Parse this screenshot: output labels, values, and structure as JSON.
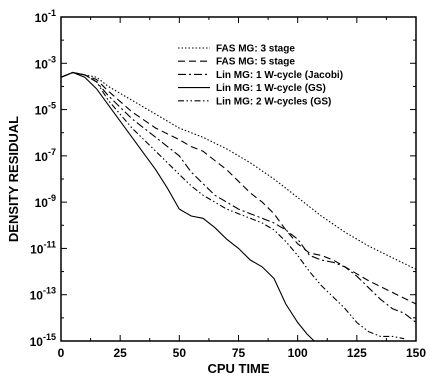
{
  "chart_data": {
    "type": "line",
    "title": "",
    "xlabel": "CPU TIME",
    "ylabel": "DENSITY RESIDUAL",
    "xlim": [
      0,
      150
    ],
    "ylim_exp": [
      -15,
      -1
    ],
    "yscale": "log",
    "grid": false,
    "legend_placement": "top-right",
    "x_ticks": [
      0,
      25,
      50,
      75,
      100,
      125,
      150
    ],
    "x_tick_labels": [
      "0",
      "25",
      "50",
      "75",
      "100",
      "125",
      "150"
    ],
    "y_ticks_exp": [
      -1,
      -3,
      -5,
      -7,
      -9,
      -11,
      -13,
      -15
    ],
    "y_tick_labels": [
      {
        "base": "10",
        "exp": "-1"
      },
      {
        "base": "10",
        "exp": "-3"
      },
      {
        "base": "10",
        "exp": "-5"
      },
      {
        "base": "10",
        "exp": "-7"
      },
      {
        "base": "10",
        "exp": "-9"
      },
      {
        "base": "10",
        "exp": "-11"
      },
      {
        "base": "10",
        "exp": "-13"
      },
      {
        "base": "10",
        "exp": "-15"
      }
    ],
    "series": [
      {
        "name": "FAS MG: 3 stage",
        "dash": "1.5,2",
        "x": [
          0,
          5,
          10,
          15,
          20,
          30,
          40,
          50,
          60,
          70,
          80,
          90,
          100,
          110,
          120,
          130,
          140,
          150
        ],
        "y_exp": [
          -3.6,
          -3.4,
          -3.5,
          -3.6,
          -4.0,
          -4.6,
          -5.2,
          -5.8,
          -6.2,
          -6.7,
          -7.3,
          -8.0,
          -8.8,
          -9.6,
          -10.3,
          -10.9,
          -11.4,
          -11.9
        ]
      },
      {
        "name": "FAS MG: 5 stage",
        "dash": "7,4",
        "x": [
          0,
          5,
          10,
          15,
          20,
          30,
          40,
          50,
          55,
          60,
          65,
          70,
          75,
          80,
          85,
          90,
          95,
          100,
          105,
          110,
          115,
          120,
          130,
          140,
          150
        ],
        "y_exp": [
          -3.6,
          -3.4,
          -3.5,
          -3.7,
          -4.2,
          -5.1,
          -5.8,
          -6.3,
          -6.6,
          -6.8,
          -7.2,
          -7.6,
          -8.1,
          -8.6,
          -9.0,
          -9.5,
          -10.2,
          -10.8,
          -11.2,
          -11.3,
          -11.5,
          -11.8,
          -12.4,
          -12.9,
          -13.4
        ]
      },
      {
        "name": "Lin MG: 1 W-cycle (Jacobi)",
        "dash": "8,3,2,3",
        "x": [
          0,
          5,
          10,
          15,
          20,
          30,
          40,
          50,
          55,
          60,
          65,
          70,
          75,
          80,
          85,
          90,
          95,
          100,
          105,
          110,
          115,
          120,
          125,
          130,
          135,
          140,
          145,
          150
        ],
        "y_exp": [
          -3.6,
          -3.4,
          -3.5,
          -3.8,
          -4.4,
          -5.4,
          -6.2,
          -7.0,
          -7.7,
          -8.2,
          -8.7,
          -9.0,
          -9.3,
          -9.5,
          -9.7,
          -9.9,
          -10.2,
          -10.6,
          -11.3,
          -11.5,
          -11.6,
          -11.8,
          -12.2,
          -12.7,
          -13.2,
          -13.6,
          -13.8,
          -14.2
        ]
      },
      {
        "name": "Lin MG: 1 W-cycle (GS)",
        "dash": "",
        "x": [
          0,
          5,
          10,
          15,
          20,
          30,
          40,
          45,
          50,
          55,
          60,
          65,
          70,
          75,
          80,
          85,
          90,
          95,
          100,
          104,
          107
        ],
        "y_exp": [
          -3.6,
          -3.4,
          -3.6,
          -4.1,
          -4.8,
          -6.2,
          -7.6,
          -8.4,
          -9.3,
          -9.6,
          -9.7,
          -10.1,
          -10.6,
          -11.0,
          -11.5,
          -11.8,
          -12.3,
          -13.4,
          -14.2,
          -14.7,
          -15.0
        ]
      },
      {
        "name": "Lin MG: 2 W-cycles (GS)",
        "dash": "6,2.5,1.5,2.5,1.5,2.5",
        "x": [
          0,
          5,
          10,
          15,
          20,
          30,
          40,
          50,
          55,
          60,
          65,
          70,
          75,
          80,
          85,
          90,
          95,
          100,
          105,
          110,
          115,
          120,
          125,
          130,
          135,
          140,
          145
        ],
        "y_exp": [
          -3.6,
          -3.4,
          -3.5,
          -3.8,
          -4.6,
          -5.8,
          -6.8,
          -7.8,
          -8.3,
          -8.7,
          -9.0,
          -9.3,
          -9.5,
          -9.7,
          -9.9,
          -10.2,
          -10.7,
          -11.3,
          -12.0,
          -12.6,
          -13.1,
          -13.6,
          -14.2,
          -14.6,
          -14.8,
          -14.8,
          -14.9
        ]
      }
    ]
  }
}
